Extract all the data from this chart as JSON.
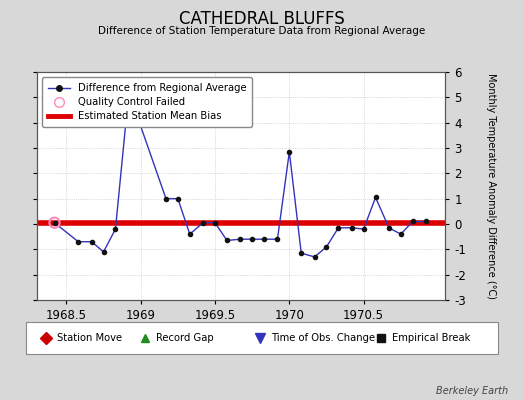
{
  "title": "CATHEDRAL BLUFFS",
  "subtitle": "Difference of Station Temperature Data from Regional Average",
  "ylabel_right": "Monthly Temperature Anomaly Difference (°C)",
  "credit": "Berkeley Earth",
  "xlim": [
    1968.3,
    1971.05
  ],
  "ylim": [
    -3,
    6
  ],
  "yticks": [
    -3,
    -2,
    -1,
    0,
    1,
    2,
    3,
    4,
    5,
    6
  ],
  "xticks": [
    1968.5,
    1969.0,
    1969.5,
    1970.0,
    1970.5
  ],
  "xticklabels": [
    "1968.5",
    "1969",
    "1969.5",
    "1970",
    "1970.5"
  ],
  "background_color": "#d8d8d8",
  "plot_bg_color": "#ffffff",
  "line_color": "#3333bb",
  "bias_color": "#dd0000",
  "bias_value": 0.05,
  "data_x": [
    1968.42,
    1968.58,
    1968.67,
    1968.75,
    1968.83,
    1968.92,
    1969.17,
    1969.25,
    1969.33,
    1969.42,
    1969.5,
    1969.58,
    1969.67,
    1969.75,
    1969.83,
    1969.92,
    1970.0,
    1970.08,
    1970.17,
    1970.25,
    1970.33,
    1970.42,
    1970.5,
    1970.58,
    1970.67,
    1970.75,
    1970.83,
    1970.92
  ],
  "data_y": [
    0.05,
    -0.7,
    -0.7,
    -1.1,
    -0.2,
    5.2,
    1.0,
    1.0,
    -0.4,
    0.05,
    0.05,
    -0.65,
    -0.6,
    -0.6,
    -0.6,
    -0.6,
    2.85,
    -1.15,
    -1.3,
    -0.9,
    -0.15,
    -0.15,
    -0.2,
    1.05,
    -0.15,
    -0.4,
    0.1,
    0.1
  ],
  "qc_fail_x": [
    1968.42
  ],
  "qc_fail_y": [
    0.05
  ],
  "legend_labels": [
    "Difference from Regional Average",
    "Quality Control Failed",
    "Estimated Station Mean Bias"
  ],
  "bottom_legend": [
    "Station Move",
    "Record Gap",
    "Time of Obs. Change",
    "Empirical Break"
  ],
  "bottom_legend_colors": [
    "#cc0000",
    "#228B22",
    "#3333bb",
    "#111111"
  ],
  "bottom_legend_markers": [
    "D",
    "^",
    "v",
    "s"
  ]
}
